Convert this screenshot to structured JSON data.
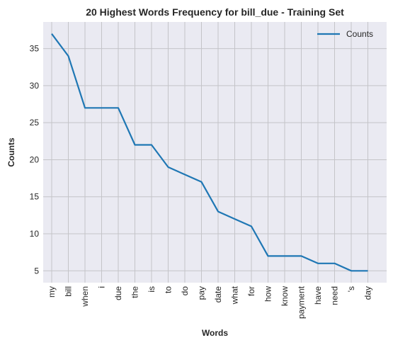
{
  "chart_data": {
    "type": "line",
    "title": "20 Highest Words Frequency for bill_due - Training Set",
    "xlabel": "Words",
    "ylabel": "Counts",
    "categories": [
      "my",
      "bill",
      "when",
      "i",
      "due",
      "the",
      "is",
      "to",
      "do",
      "pay",
      "date",
      "what",
      "for",
      "how",
      "know",
      "payment",
      "have",
      "need",
      "'s",
      "day"
    ],
    "series": [
      {
        "name": "Counts",
        "values": [
          37,
          34,
          27,
          27,
          27,
          22,
          22,
          19,
          18,
          17,
          13,
          12,
          11,
          7,
          7,
          7,
          6,
          6,
          5,
          5
        ]
      }
    ],
    "y_ticks": [
      5,
      10,
      15,
      20,
      25,
      30,
      35
    ],
    "ylim": [
      3.4,
      38.6
    ],
    "grid": true,
    "legend": "top-right",
    "colors": {
      "line": "#1f77b4",
      "background": "#eaeaf2",
      "grid": "#c4c4c8"
    }
  }
}
